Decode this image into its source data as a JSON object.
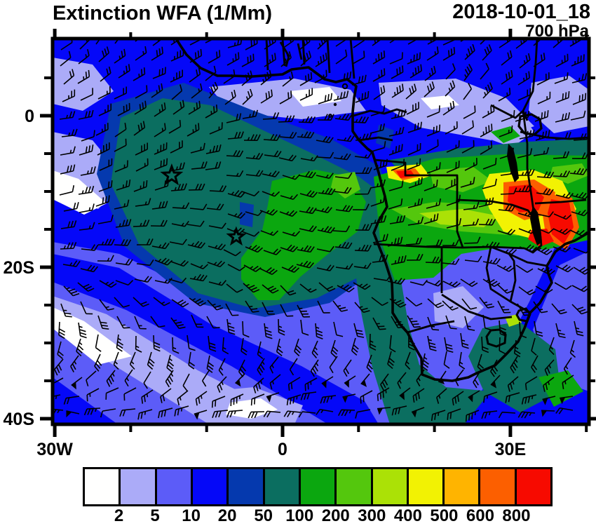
{
  "header": {
    "title": "Extinction WFA (1/Mm)",
    "datetime": "2018-10-01_18",
    "level": "700 hPa"
  },
  "map": {
    "lon_range": [
      -30.3,
      40.3
    ],
    "lat_range": [
      -40.7,
      10.2
    ],
    "x_axis": {
      "major": [
        {
          "label": "30W",
          "lon": -30
        },
        {
          "label": "0",
          "lon": 0
        },
        {
          "label": "30E",
          "lon": 30
        }
      ],
      "minor_lons": [
        -20,
        -10,
        10,
        20,
        40
      ]
    },
    "y_axis": {
      "major": [
        {
          "label": "0",
          "lat": 0
        },
        {
          "label": "20S",
          "lat": -20
        },
        {
          "label": "40S",
          "lat": -40
        }
      ],
      "minor_lats": [
        5,
        -5,
        -10,
        -15,
        -25,
        -30,
        -35
      ]
    },
    "markers": [
      {
        "symbol": "star",
        "lon": -14.6,
        "lat": -7.9
      },
      {
        "symbol": "star",
        "lon": -6.1,
        "lat": -16.0
      }
    ]
  },
  "colorbar": {
    "labels": [
      "2",
      "5",
      "10",
      "20",
      "50",
      "100",
      "200",
      "300",
      "400",
      "500",
      "600",
      "800"
    ],
    "colors": [
      "#FFFFFE",
      "#ABABF8",
      "#5C5CF8",
      "#0508F8",
      "#0539AE",
      "#0B6E60",
      "#0BA70F",
      "#54C70D",
      "#ABE106",
      "#F2F203",
      "#FFB400",
      "#FC5F00",
      "#F70A00"
    ]
  },
  "chart_data": {
    "type": "heatmap",
    "title": "Extinction WFA (1/Mm)",
    "timestamp_label": "2018-10-01_18",
    "pressure_level": "700 hPa",
    "units": "1/Mm",
    "projection": "lat-lon map of southern Africa and South Atlantic",
    "lon_range_deg": [
      -30,
      40
    ],
    "lat_range_deg": [
      -41,
      10
    ],
    "x_tick_labels": [
      "30W",
      "0",
      "30E"
    ],
    "y_tick_labels": [
      "0",
      "20S",
      "40S"
    ],
    "colorbar_boundaries": [
      2,
      5,
      10,
      20,
      50,
      100,
      200,
      300,
      400,
      500,
      600,
      800
    ],
    "colorbar_colors": [
      "#FFFFFE",
      "#ABABF8",
      "#5C5CF8",
      "#0508F8",
      "#0539AE",
      "#0B6E60",
      "#0BA70F",
      "#54C70D",
      "#ABE106",
      "#F2F203",
      "#FFB400",
      "#FC5F00",
      "#F70A00"
    ],
    "overlay": "wind barbs at 700 hPa",
    "markers": [
      {
        "symbol": "star",
        "lon": -14.6,
        "lat": -7.9
      },
      {
        "symbol": "star",
        "lon": -6.1,
        "lat": -16.0
      }
    ],
    "field_summary": [
      "smoke extinction plume 50-200 1/Mm extending WNW from Angola coast over SE Atlantic",
      "maxima 400 to >800 1/Mm over Malawi / northern Mozambique region",
      "background 5-20 1/Mm over subtropical South Atlantic and Indian Ocean",
      "low values 10-50 1/Mm over South Africa interior"
    ]
  }
}
